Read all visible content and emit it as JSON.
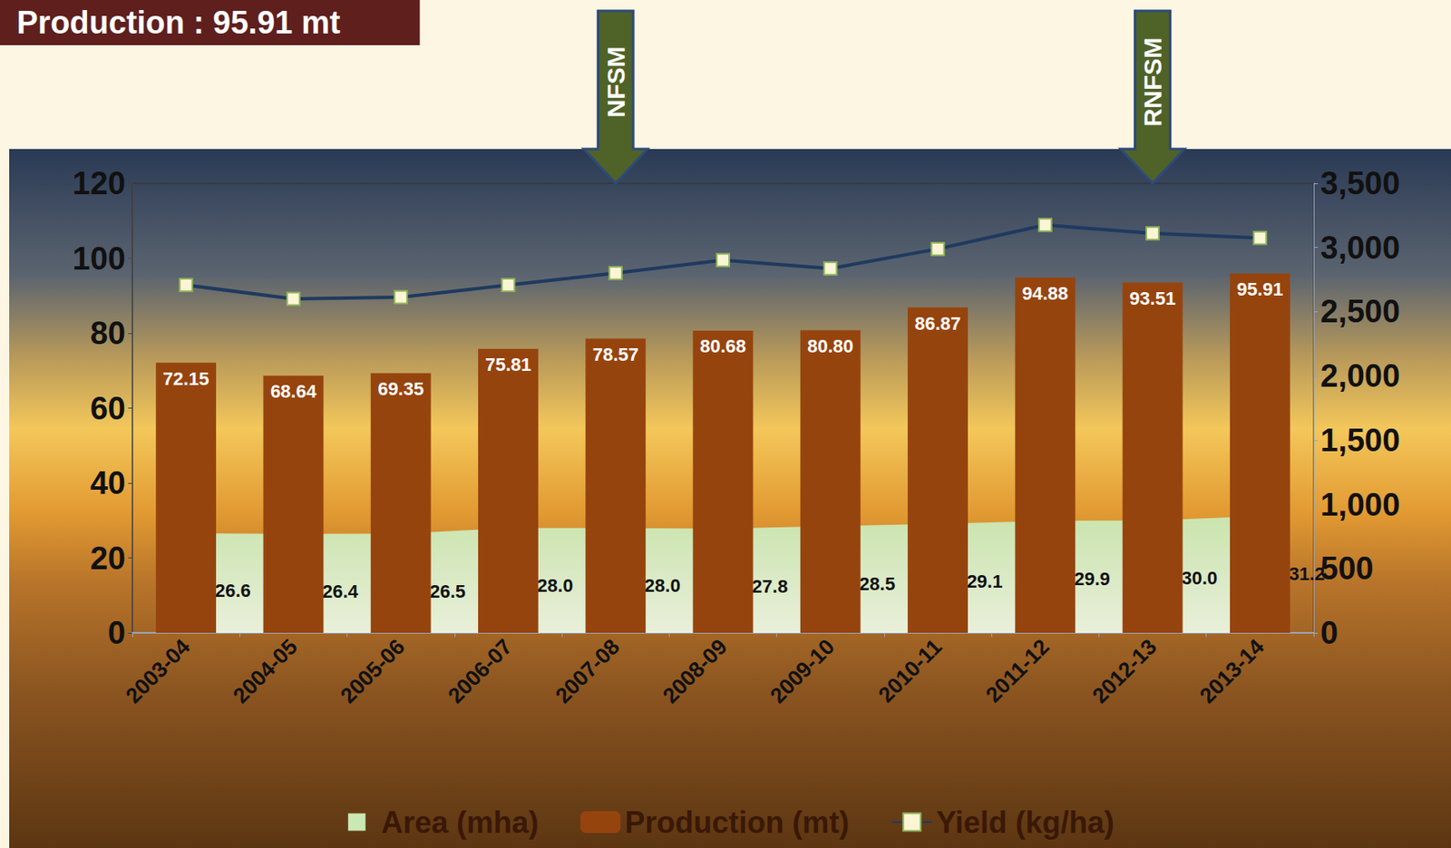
{
  "chart_data": {
    "type": "bar",
    "title": "Production : 95.91 mt",
    "categories": [
      "2003-04",
      "2004-05",
      "2005-06",
      "2006-07",
      "2007-08",
      "2008-09",
      "2009-10",
      "2010-11",
      "2011-12",
      "2012-13",
      "2013-14"
    ],
    "series": [
      {
        "name": "Area (mha)",
        "type": "area",
        "color": "#c9e8b4",
        "data_labels": true,
        "values": [
          26.6,
          26.4,
          26.5,
          28.0,
          28.0,
          27.8,
          28.5,
          29.1,
          29.9,
          30.0,
          31.2
        ],
        "value_labels": [
          "26.6",
          "26.4",
          "26.5",
          "28.0",
          "28.0",
          "27.8",
          "28.5",
          "29.1",
          "29.9",
          "30.0",
          "31.2"
        ]
      },
      {
        "name": "Production (mt)",
        "type": "bar",
        "color": "#96440e",
        "data_labels": true,
        "values": [
          72.15,
          68.64,
          69.35,
          75.81,
          78.57,
          80.68,
          80.8,
          86.87,
          94.88,
          93.51,
          95.91
        ],
        "value_labels": [
          "72.15",
          "68.64",
          "69.35",
          "75.81",
          "78.57",
          "80.68",
          "80.80",
          "86.87",
          "94.88",
          "93.51",
          "95.91"
        ]
      },
      {
        "name": "Yield (kg/ha)",
        "type": "line",
        "axis": "y2",
        "color": "#1f3a5f",
        "marker": "square",
        "data_labels": false,
        "values": [
          2708,
          2600,
          2614,
          2708,
          2801,
          2902,
          2837,
          2989,
          3176,
          3111,
          3075
        ]
      }
    ],
    "ylim": [
      0,
      120
    ],
    "yticks": [
      0,
      20,
      40,
      60,
      80,
      100,
      120
    ],
    "y2lim": [
      0,
      3500
    ],
    "y2ticks": [
      0,
      500,
      1000,
      1500,
      2000,
      2500,
      3000,
      3500
    ],
    "annotations": [
      {
        "text": "NFSM",
        "category": "2007-08"
      },
      {
        "text": "RNFSM",
        "category": "2012-13"
      }
    ],
    "legend": "bottom",
    "grid": false
  }
}
